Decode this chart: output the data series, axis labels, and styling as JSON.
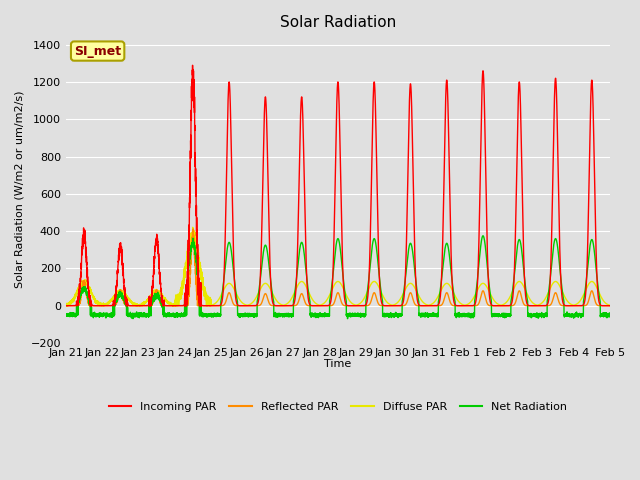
{
  "title": "Solar Radiation",
  "xlabel": "Time",
  "ylabel": "Solar Radiation (W/m2 or um/m2/s)",
  "ylim": [
    -200,
    1450
  ],
  "yticks": [
    -200,
    0,
    200,
    400,
    600,
    800,
    1000,
    1200,
    1400
  ],
  "annotation": "SI_met",
  "bg_color": "#e0e0e0",
  "plot_bg_color": "#e0e0e0",
  "grid_color": "#ffffff",
  "colors": {
    "incoming": "#ff0000",
    "reflected": "#ff8c00",
    "diffuse": "#e8e800",
    "net": "#00cc00"
  },
  "legend_labels": [
    "Incoming PAR",
    "Reflected PAR",
    "Diffuse PAR",
    "Net Radiation"
  ],
  "x_tick_labels": [
    "Jan 21",
    "Jan 22",
    "Jan 23",
    "Jan 24",
    "Jan 25",
    "Jan 26",
    "Jan 27",
    "Jan 28",
    "Jan 29",
    "Jan 30",
    "Jan 31",
    "Feb 1",
    "Feb 2",
    "Feb 3",
    "Feb 4",
    "Feb 5"
  ],
  "n_days": 15,
  "day_peaks_incoming": [
    390,
    320,
    360,
    1240,
    1200,
    1120,
    1120,
    1200,
    1200,
    1190,
    1210,
    1260,
    1200,
    1220,
    1210
  ],
  "day_peaks_reflected": [
    130,
    80,
    80,
    380,
    70,
    65,
    65,
    70,
    70,
    70,
    70,
    80,
    80,
    70,
    80
  ],
  "day_peaks_diffuse": [
    130,
    80,
    80,
    380,
    120,
    120,
    130,
    130,
    130,
    120,
    120,
    120,
    130,
    130,
    130
  ],
  "day_peaks_net": [
    90,
    60,
    55,
    340,
    340,
    325,
    340,
    360,
    360,
    335,
    335,
    375,
    355,
    360,
    355
  ],
  "night_net_base": -50,
  "title_fontsize": 11,
  "label_fontsize": 8,
  "tick_fontsize": 8,
  "linewidth": 1.0
}
